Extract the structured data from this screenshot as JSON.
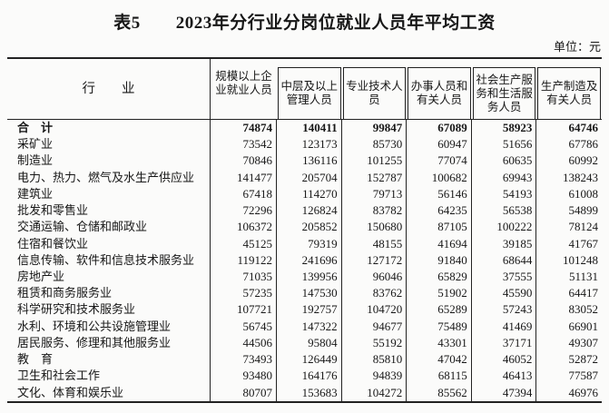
{
  "page": {
    "title": "表5　　2023年分行业分岗位就业人员年平均工资",
    "unit_label": "单位：元"
  },
  "table": {
    "industry_header": "行　　业",
    "columns": [
      {
        "label": "规模以上企业就业人员"
      },
      {
        "label": "中层及以上管理人员"
      },
      {
        "label": "专业技术人员"
      },
      {
        "label": "办事人员和有关人员"
      },
      {
        "label": "社会生产服务和生活服务人员"
      },
      {
        "label": "生产制造及有关人员"
      }
    ],
    "rows": [
      {
        "industry": "合　计",
        "bold": true,
        "values": [
          74874,
          140411,
          99847,
          67089,
          58923,
          64746
        ]
      },
      {
        "industry": "采矿业",
        "values": [
          73542,
          123173,
          85730,
          60947,
          51656,
          67786
        ]
      },
      {
        "industry": "制造业",
        "values": [
          70846,
          136116,
          101255,
          77074,
          60635,
          60992
        ]
      },
      {
        "industry": "电力、热力、燃气及水生产供应业",
        "values": [
          141477,
          205704,
          152787,
          100682,
          69943,
          138243
        ]
      },
      {
        "industry": "建筑业",
        "values": [
          67418,
          114270,
          79713,
          56146,
          54193,
          61008
        ]
      },
      {
        "industry": "批发和零售业",
        "values": [
          72296,
          126824,
          83782,
          64235,
          56538,
          54899
        ]
      },
      {
        "industry": "交通运输、仓储和邮政业",
        "values": [
          106372,
          205852,
          150680,
          87105,
          100222,
          78124
        ]
      },
      {
        "industry": "住宿和餐饮业",
        "values": [
          45125,
          79319,
          48155,
          41694,
          39185,
          41767
        ]
      },
      {
        "industry": "信息传输、软件和信息技术服务业",
        "values": [
          119122,
          241696,
          127172,
          91840,
          68644,
          101248
        ]
      },
      {
        "industry": "房地产业",
        "values": [
          71035,
          139956,
          96046,
          65829,
          37555,
          51131
        ]
      },
      {
        "industry": "租赁和商务服务业",
        "values": [
          57235,
          147530,
          83762,
          51902,
          45590,
          64417
        ]
      },
      {
        "industry": "科学研究和技术服务业",
        "values": [
          107721,
          192757,
          104720,
          65289,
          57243,
          83052
        ]
      },
      {
        "industry": "水利、环境和公共设施管理业",
        "values": [
          56745,
          147322,
          94677,
          75489,
          41469,
          66901
        ]
      },
      {
        "industry": "居民服务、修理和其他服务业",
        "values": [
          44506,
          95804,
          55192,
          43301,
          37171,
          49307
        ]
      },
      {
        "industry": "教　育",
        "values": [
          73493,
          126449,
          85810,
          47042,
          46052,
          52872
        ]
      },
      {
        "industry": "卫生和社会工作",
        "values": [
          93480,
          164176,
          94839,
          68115,
          46413,
          77587
        ]
      },
      {
        "industry": "文化、体育和娱乐业",
        "values": [
          80707,
          153683,
          104272,
          85562,
          47394,
          46976
        ]
      }
    ]
  },
  "colors": {
    "text": "#171717",
    "border": "#222222",
    "background": "#fbfbfa"
  }
}
